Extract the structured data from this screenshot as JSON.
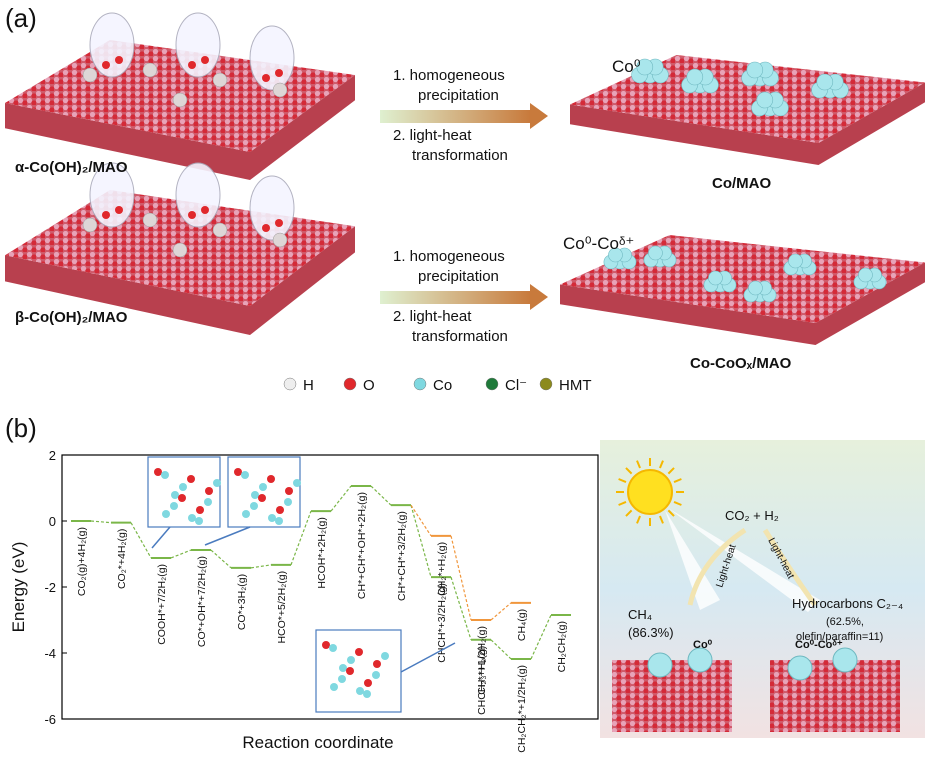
{
  "panel_a": {
    "label": "(a)",
    "row1": {
      "precursor": "α-Co(OH)₂/MAO",
      "step1a": "1. homogeneous",
      "step1b": "precipitation",
      "step2a": "2. light-heat",
      "step2b": "transformation",
      "species": "Co⁰",
      "product": "Co/MAO"
    },
    "row2": {
      "precursor": "β-Co(OH)₂/MAO",
      "step1a": "1. homogeneous",
      "step1b": "precipitation",
      "step2a": "2. light-heat",
      "step2b": "transformation",
      "species": "Co⁰-Coᵟ⁺",
      "product": "Co-CoOₓ/MAO"
    },
    "legend": [
      {
        "label": "H",
        "color": "#eeeeee"
      },
      {
        "label": "O",
        "color": "#e0282c"
      },
      {
        "label": "Co",
        "color": "#7fd8e0"
      },
      {
        "label": "Cl⁻",
        "color": "#1f7a3a"
      },
      {
        "label": "HMT",
        "color": "#8c8a1c"
      }
    ]
  },
  "panel_b": {
    "label": "(b)",
    "scheme": {
      "reactants": "CO₂ + H₂",
      "path1": "Light-heat",
      "path2": "Light-heat",
      "product1": "CH₄",
      "selectivity1": "(86.3%)",
      "catalyst1": "Co⁰",
      "catalyst2": "Co⁰-Coᵟ⁺",
      "product2": "Hydrocarbons C₂₋₄",
      "selectivity2a": "(62.5%,",
      "selectivity2b": "olefin/paraffin=11)"
    }
  },
  "chart_data": {
    "type": "energy-diagram",
    "ylabel": "Energy (eV)",
    "xlabel": "Reaction coordinate",
    "ylim": [
      -6,
      2
    ],
    "yticks": [
      -6,
      -4,
      -2,
      0,
      2
    ],
    "series": [
      {
        "color": "#7ab648",
        "values": [
          0,
          -0.05,
          -1.12,
          -0.88,
          -1.42,
          -1.33,
          0.3,
          1.06,
          0.48,
          -1.7,
          -3.6,
          -4.18,
          -2.85
        ],
        "labels": [
          "CO₂(g)+4H₂(g)",
          "CO₂*+4H₂(g)",
          "COOH*+7/2H₂(g)",
          "CO*+OH*+7/2H₂(g)",
          "CO*+3H₂(g)",
          "HCO*+5/2H₂(g)",
          "HCOH*+2H₂(g)",
          "CH*+CH*+OH*+2H₂(g)",
          "CH*+CH*+3/2H₂(g)",
          "CHCH*+3/2H₂(g)",
          "CHCH₂*+H₂(g)",
          "CH₂CH₂*+1/2H₂(g)",
          "CH₂CH₂(g)"
        ]
      },
      {
        "color": "#f0963c",
        "values": [
          null,
          null,
          null,
          null,
          null,
          null,
          null,
          null,
          null,
          -0.45,
          -3.0,
          -2.48,
          null
        ],
        "labels": [
          null,
          null,
          null,
          null,
          null,
          null,
          null,
          null,
          null,
          "CH₂*+H₂(g)",
          "CH₃*+1/2H₂(g)",
          "CH₄(g)",
          null
        ]
      }
    ]
  }
}
